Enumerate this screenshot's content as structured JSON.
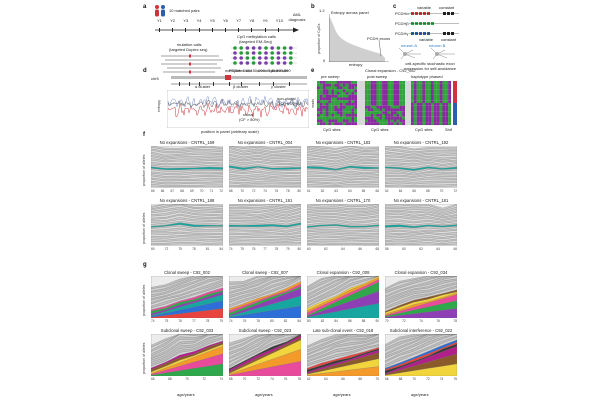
{
  "panel_labels": {
    "a": "a",
    "b": "b",
    "c": "c",
    "d": "d",
    "e": "e",
    "f": "f",
    "g": "g"
  },
  "panel_a": {
    "matched_pairs": "10 matched pairs",
    "aml_diagnosis": "AML diagnosis",
    "timepoints": [
      "Y1",
      "Y2",
      "Y3",
      "Y4",
      "Y5",
      "Y6",
      "Y7",
      "Y8",
      "Y9",
      "Y10"
    ],
    "mutation_calls": "mutation calls",
    "mutation_method": "(targeted Duplex seq)",
    "methylation_calls": "CpG methylation calls",
    "methylation_method": "(targeted EM-Seq)",
    "methylated_site": "methylated site",
    "unmethylated_site": "unmethylated site"
  },
  "panel_b": {
    "title": "Entropy across panel",
    "ylabel": "proportion of CpGs",
    "xlabel": "entropy",
    "yticks": [
      "1.2",
      "0"
    ],
    "annotation": "PCDH exons"
  },
  "panel_c": {
    "genes": [
      "PCDHα",
      "PCDHβ",
      "PCDHγ"
    ],
    "variable": "variable",
    "constant": "constant",
    "neurons": [
      "neuron A",
      "neuron B"
    ],
    "caption": "cell-specific stochastic exon expression for self-avoidance"
  },
  "panel_d": {
    "chrom": "chr5",
    "region": "PCDH: 140,150,000 - 140,895,000",
    "gene_labels": [
      "α cluster",
      "β cluster",
      "γ cluster"
    ],
    "nonclonal": "non-clonal",
    "nonclonal_cf": "(CF < 20%)",
    "clonal": "clonal",
    "clonal_cf": "(CF > 80%)",
    "ylabel": "entropy",
    "xlabel": "position in panel (arbitrary scale)"
  },
  "panel_e": {
    "title": "Clonal expansion - C92_002",
    "subs": [
      "pre sweep",
      "post sweep",
      "haplotype phased"
    ],
    "xlabel": "CpG sites",
    "ylabel": "reads",
    "shift": "Shif"
  },
  "panel_f": {
    "ylabel": "proportion of alleles",
    "panels": [
      {
        "title": "No expansions - CNTRL_169",
        "ticks": [
          "65",
          "66",
          "67",
          "68",
          "69",
          "70",
          "71",
          "72"
        ]
      },
      {
        "title": "No expansions - CNTRL_004",
        "ticks": [
          "68",
          "70",
          "72",
          "74",
          "76",
          "78",
          "80"
        ]
      },
      {
        "title": "No expansions - CNTRL_183",
        "ticks": [
          "61",
          "62",
          "63",
          "64",
          "65",
          "66"
        ]
      },
      {
        "title": "No expansions - CNTRL_192",
        "ticks": [
          "62",
          "64",
          "66",
          "68",
          "70",
          "72"
        ]
      },
      {
        "title": "No expansions - CNTRL_188",
        "ticks": [
          "69",
          "72",
          "75",
          "78",
          "81",
          "84"
        ]
      },
      {
        "title": "No expansions - CNTRL_191",
        "ticks": [
          "74",
          "75",
          "76",
          "77",
          "78",
          "79",
          "80"
        ]
      },
      {
        "title": "No expansions - CNTRL_170",
        "ticks": [
          "60",
          "62",
          "64",
          "66",
          "68"
        ]
      },
      {
        "title": "No expansions - CNTRL_181",
        "ticks": [
          "58",
          "60",
          "62",
          "64",
          "66"
        ]
      }
    ]
  },
  "panel_g": {
    "ylabel": "proportion of alleles",
    "xlabel": "age/years",
    "panels": [
      {
        "title": "Clonal sweep - C92_002",
        "ticks": [
          "74",
          "75",
          "76",
          "77",
          "78",
          "79"
        ]
      },
      {
        "title": "Clonal sweep - C92_007",
        "ticks": [
          "74",
          "76",
          "78",
          "80",
          "82",
          "84"
        ]
      },
      {
        "title": "Clonal expansion - C92_008",
        "ticks": [
          "80",
          "82",
          "84",
          "86",
          "88",
          "90"
        ]
      },
      {
        "title": "Clonal expansion - C92_034",
        "ticks": [
          "70",
          "72",
          "74",
          "76",
          "78"
        ]
      },
      {
        "title": "Subclonal sweep - C92_033",
        "ticks": [
          "66",
          "68",
          "70",
          "72",
          "74"
        ]
      },
      {
        "title": "Subclonal sweep - C92_023",
        "ticks": [
          "68",
          "70",
          "72",
          "74",
          "76",
          "78"
        ]
      },
      {
        "title": "Late sub-clonal event - C92_018",
        "ticks": [
          "62",
          "64",
          "66",
          "68",
          "70"
        ]
      },
      {
        "title": "Subclonal interference - C92_022",
        "ticks": [
          "66",
          "68",
          "70",
          "72",
          "74",
          "76"
        ]
      }
    ]
  },
  "colors": {
    "grey_lines": "#9a9a9a",
    "teal": "#17a7a0",
    "red": "#e8433e",
    "blue": "#2d6fd6",
    "purple": "#8e3fb5",
    "green": "#2ea84a",
    "pink": "#e84b9b",
    "orange": "#f39a2b",
    "yellow": "#f2d53c",
    "dark": "#3a3a3a",
    "brown": "#8a5a2b",
    "magenta": "#b11f8b"
  }
}
